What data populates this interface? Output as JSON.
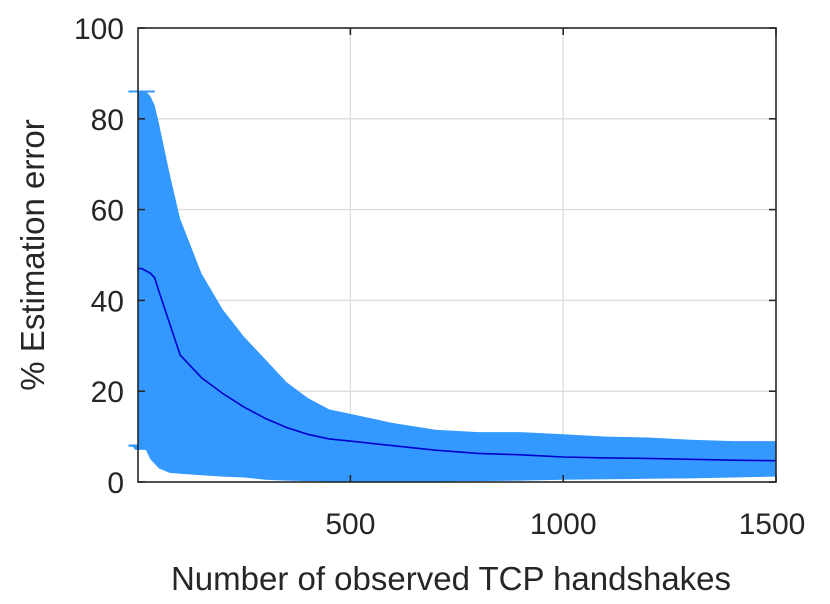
{
  "chart_data": {
    "type": "area",
    "xlabel": "Number of observed TCP handshakes",
    "ylabel": "% Estimation error",
    "xlim": [
      1,
      1500
    ],
    "ylim": [
      0,
      100
    ],
    "x_ticks": [
      500,
      1000,
      1500
    ],
    "y_ticks": [
      0,
      20,
      40,
      60,
      80,
      100
    ],
    "grid": true,
    "colors": {
      "band": "#3399ff",
      "mean_line": "#0000cc"
    },
    "series": [
      {
        "kind": "mean",
        "x": [
          1,
          10,
          20,
          30,
          40,
          50,
          75,
          100,
          150,
          200,
          250,
          300,
          350,
          400,
          450,
          500,
          600,
          700,
          800,
          900,
          1000,
          1100,
          1200,
          1300,
          1400,
          1500
        ],
        "y": [
          47,
          47,
          46.5,
          46,
          45,
          42,
          35,
          28,
          23,
          19.5,
          16.5,
          14,
          12,
          10.5,
          9.5,
          9,
          8,
          7,
          6.3,
          6,
          5.5,
          5.3,
          5.2,
          5,
          4.8,
          4.7
        ]
      },
      {
        "kind": "upper",
        "x": [
          1,
          10,
          20,
          30,
          40,
          50,
          75,
          100,
          150,
          200,
          250,
          300,
          350,
          400,
          450,
          500,
          600,
          700,
          800,
          900,
          1000,
          1100,
          1200,
          1300,
          1400,
          1500
        ],
        "y": [
          86,
          86,
          86,
          85,
          83,
          79,
          68,
          58,
          46,
          38,
          32,
          27,
          22,
          18.5,
          16,
          15,
          13,
          11.5,
          11,
          11,
          10.5,
          10,
          9.8,
          9.3,
          9,
          9
        ]
      },
      {
        "kind": "lower",
        "x": [
          1,
          10,
          20,
          30,
          40,
          50,
          75,
          100,
          150,
          200,
          250,
          300,
          350,
          400,
          450,
          500,
          600,
          700,
          800,
          900,
          1000,
          1100,
          1200,
          1300,
          1400,
          1500
        ],
        "y": [
          8,
          8,
          7,
          5,
          4,
          3,
          2,
          1.8,
          1.5,
          1.2,
          1,
          0.5,
          0.3,
          0.2,
          0.1,
          0.1,
          0.1,
          0.1,
          0.2,
          0.3,
          0.5,
          0.6,
          0.7,
          0.8,
          1,
          1.2
        ]
      }
    ]
  }
}
